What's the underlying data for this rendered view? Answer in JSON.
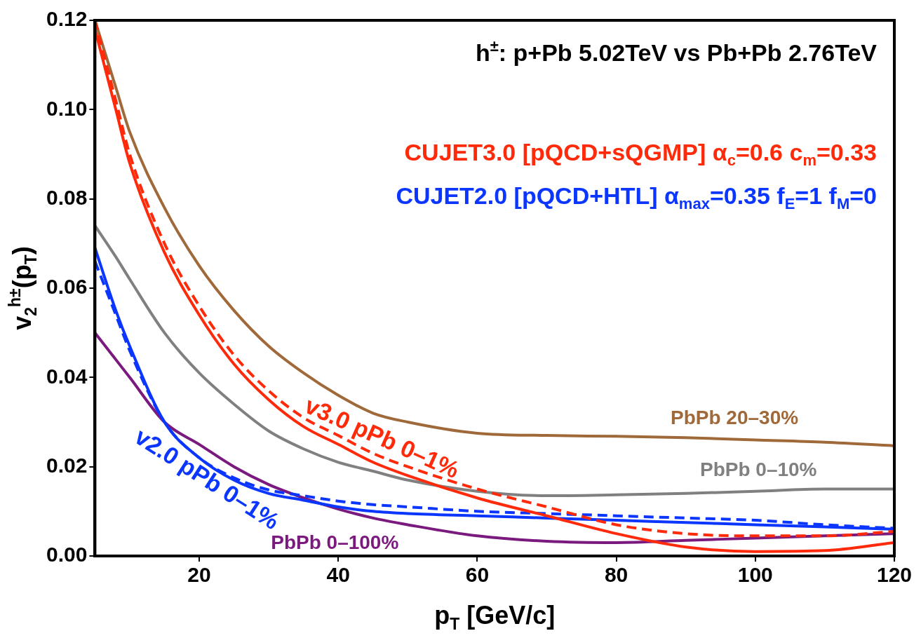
{
  "chart_data": {
    "type": "line",
    "title": "h$^{±}$: p+Pb 5.02TeV vs Pb+Pb 2.76TeV",
    "xlabel": "p$_{T}$ [GeV/c]",
    "ylabel": "v$_{2}$$^{h±}$(p$_{T}$)",
    "x": [
      5,
      8,
      10,
      15,
      20,
      25,
      30,
      35,
      40,
      45,
      50,
      60,
      70,
      80,
      90,
      100,
      110,
      120
    ],
    "xlim": [
      5,
      120
    ],
    "xticks": [
      20,
      40,
      60,
      80,
      100,
      120
    ],
    "ylim": [
      0,
      0.12
    ],
    "yticks": [
      {
        "value": 0,
        "label": "0.00"
      },
      0.02,
      0.04,
      0.06,
      0.08,
      {
        "value": 0.1,
        "label": "0.10"
      },
      0.12
    ],
    "marker": "none",
    "series": [
      {
        "name": "CUJET3.0 [pQCD+sQGMP] α$_{c}$=0.6 c$_{m}$=0.33",
        "color": "#ff2a0a",
        "values": [
          0.118,
          0.1,
          0.088,
          0.068,
          0.054,
          0.043,
          0.035,
          0.029,
          0.025,
          0.021,
          0.018,
          0.013,
          0.009,
          0.005,
          0.002,
          0.001,
          0.0012,
          0.003
        ]
      },
      {
        "color": "#ff2a0a",
        "line_style": "dashed",
        "values": [
          0.12,
          0.102,
          0.09,
          0.07,
          0.056,
          0.045,
          0.037,
          0.031,
          0.027,
          0.023,
          0.02,
          0.015,
          0.011,
          0.007,
          0.005,
          0.0045,
          0.0045,
          0.0055
        ]
      },
      {
        "name": "CUJET2.0 [pQCD+HTL] α$_{max}$=0.35 f$_{E}$=1 f$_{M}$=0",
        "color": "#0a36ff",
        "values": [
          0.069,
          0.055,
          0.047,
          0.03,
          0.022,
          0.017,
          0.014,
          0.0125,
          0.011,
          0.01,
          0.0095,
          0.009,
          0.0085,
          0.008,
          0.0075,
          0.007,
          0.0065,
          0.006
        ]
      },
      {
        "color": "#0a36ff",
        "line_style": "dashed",
        "values": [
          0.066,
          0.054,
          0.046,
          0.03,
          0.022,
          0.0175,
          0.0148,
          0.0135,
          0.0123,
          0.0115,
          0.011,
          0.01,
          0.0095,
          0.009,
          0.0085,
          0.008,
          0.007,
          0.0062
        ]
      },
      {
        "name": "PbPb 20–30%",
        "color": "#a0693a",
        "values": [
          0.12,
          0.105,
          0.095,
          0.078,
          0.065,
          0.055,
          0.047,
          0.041,
          0.036,
          0.032,
          0.03,
          0.0275,
          0.027,
          0.0268,
          0.0265,
          0.026,
          0.0255,
          0.0247
        ]
      },
      {
        "name": "PbPb 0–10%",
        "color": "#808080",
        "values": [
          0.074,
          0.067,
          0.062,
          0.05,
          0.041,
          0.034,
          0.028,
          0.024,
          0.021,
          0.019,
          0.017,
          0.0145,
          0.0135,
          0.0137,
          0.014,
          0.0145,
          0.015,
          0.015
        ]
      },
      {
        "name": "PbPb 0–100%",
        "color": "#7a1a7e",
        "values": [
          0.05,
          0.044,
          0.04,
          0.03,
          0.025,
          0.02,
          0.016,
          0.013,
          0.0105,
          0.0085,
          0.007,
          0.0045,
          0.0033,
          0.003,
          0.0035,
          0.004,
          0.0045,
          0.005
        ]
      }
    ],
    "annotations": [
      "v3.0 pPb 0–1%",
      "v2.0 pPb 0–1%"
    ]
  }
}
